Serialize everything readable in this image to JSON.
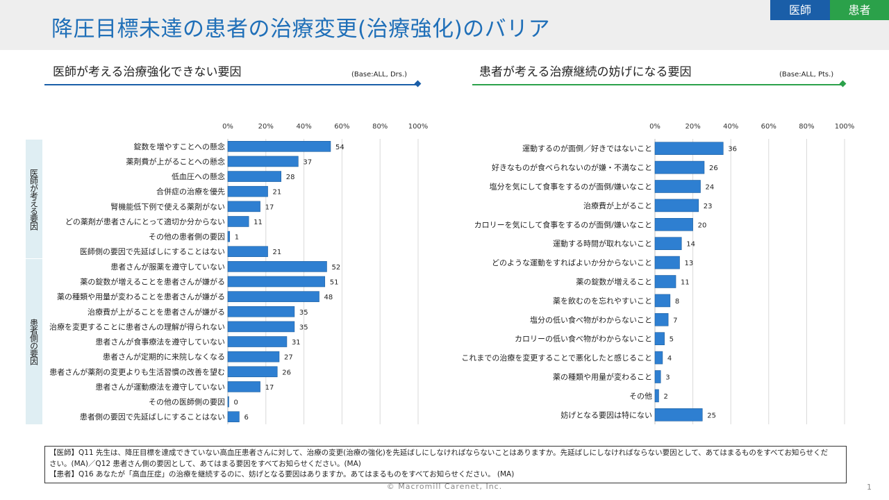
{
  "header": {
    "title": "降圧目標未達の患者の治療変更(治療強化)のバリア",
    "tags": {
      "doctor": "医師",
      "patient": "患者"
    }
  },
  "colors": {
    "bar": "#2e7fd1",
    "doctor_accent": "#1a5ea8",
    "patient_accent": "#2ba14a",
    "title": "#1f6fb8",
    "side_band": "#dfeef3"
  },
  "left_section": {
    "title": "医師が考える治療強化できない要因",
    "base": "(Base:ALL, Drs.)"
  },
  "right_section": {
    "title": "患者が考える治療継続の妨げになる要因",
    "base": "(Base:ALL, Pts.)"
  },
  "side_groups": {
    "doctor": "医師が考える要因",
    "patient": "患者側の要因"
  },
  "chart_data": [
    {
      "type": "bar",
      "orientation": "horizontal",
      "title": "医師が考える治療強化できない要因",
      "xlim": [
        0,
        100
      ],
      "tick_labels": [
        "0%",
        "20%",
        "40%",
        "60%",
        "80%",
        "100%"
      ],
      "categories": [
        "錠数を増やすことへの懸念",
        "薬剤費が上がることへの懸念",
        "低血圧への懸念",
        "合併症の治療を優先",
        "腎機能低下例で使える薬剤がない",
        "どの薬剤が患者さんにとって適切か分からない",
        "その他の患者側の要因",
        "医師側の要因で先延ばしにすることはない",
        "患者さんが服薬を遵守していない",
        "薬の錠数が増えることを患者さんが嫌がる",
        "薬の種類や用量が変わることを患者さんが嫌がる",
        "治療費が上がることを患者さんが嫌がる",
        "治療を変更することに患者さんの理解が得られない",
        "患者さんが食事療法を遵守していない",
        "患者さんが定期的に来院しなくなる",
        "患者さんが薬剤の変更よりも生活習慣の改善を望む",
        "患者さんが運動療法を遵守していない",
        "その他の医師側の要因",
        "患者側の要因で先延ばしにすることはない"
      ],
      "values": [
        54,
        37,
        28,
        21,
        17,
        11,
        1,
        21,
        52,
        51,
        48,
        35,
        35,
        31,
        27,
        26,
        17,
        0,
        6
      ]
    },
    {
      "type": "bar",
      "orientation": "horizontal",
      "title": "患者が考える治療継続の妨げになる要因",
      "xlim": [
        0,
        100
      ],
      "tick_labels": [
        "0%",
        "20%",
        "40%",
        "60%",
        "80%",
        "100%"
      ],
      "categories": [
        "運動するのが面倒／好きではないこと",
        "好きなものが食べられないのが嫌・不満なこと",
        "塩分を気にして食事をするのが面倒/嫌いなこと",
        "治療費が上がること",
        "カロリーを気にして食事をするのが面倒/嫌いなこと",
        "運動する時間が取れないこと",
        "どのような運動をすればよいか分からないこと",
        "薬の錠数が増えること",
        "薬を飲むのを忘れやすいこと",
        "塩分の低い食べ物がわからないこと",
        "カロリーの低い食べ物がわからないこと",
        "これまでの治療を変更することで悪化したと感じること",
        "薬の種類や用量が変わること",
        "その他",
        "妨げとなる要因は特にない"
      ],
      "values": [
        36,
        26,
        24,
        23,
        20,
        14,
        13,
        11,
        8,
        7,
        5,
        4,
        3,
        2,
        25
      ]
    }
  ],
  "footnote": {
    "line1": "【医師】Q11 先生は、降圧目標を達成できていない高血圧患者さんに対して、治療の変更(治療の強化)を先延ばしにしなければならないことはありますか。先延ばしにしなければならない要因として、あてはまるものをすべてお知らせくだ",
    "line2": "さい。(MA)／Q12 患者さん側の要因として、あてはまる要因をすべてお知らせください。(MA)",
    "line3": "【患者】Q16 あなたが「高血圧症」の治療を継続するのに、妨げとなる要因はありますか。あてはまるものをすべてお知らせください。 (MA)"
  },
  "copyright": "© Macromill Carenet, Inc.",
  "page_number": "1"
}
